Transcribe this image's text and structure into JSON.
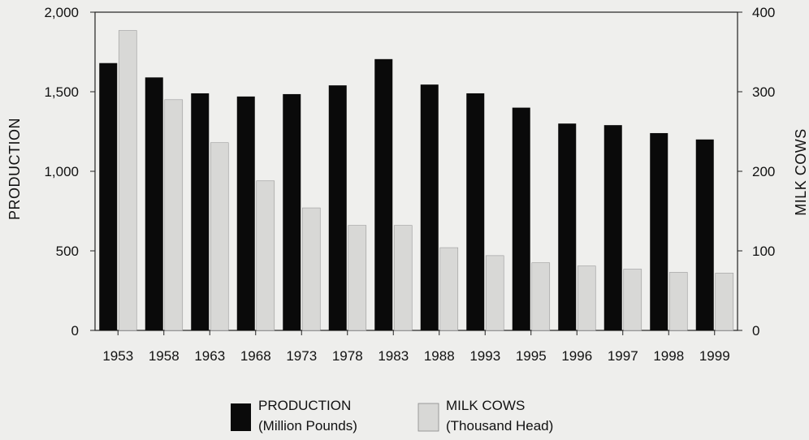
{
  "chart_data": {
    "type": "bar",
    "categories": [
      "1953",
      "1958",
      "1963",
      "1968",
      "1973",
      "1978",
      "1983",
      "1988",
      "1993",
      "1995",
      "1996",
      "1997",
      "1998",
      "1999"
    ],
    "series": [
      {
        "name": "PRODUCTION",
        "unit": "(Million Pounds)",
        "axis": "left",
        "color": "#0a0a0a",
        "values": [
          1680,
          1590,
          1490,
          1470,
          1485,
          1540,
          1705,
          1545,
          1490,
          1400,
          1300,
          1290,
          1240,
          1200
        ]
      },
      {
        "name": "MILK COWS",
        "unit": "(Thousand Head)",
        "axis": "right",
        "color": "#d8d8d6",
        "values": [
          377,
          290,
          236,
          188,
          154,
          132,
          132,
          104,
          94,
          85,
          81,
          77,
          73,
          72
        ]
      }
    ],
    "ylabel_left": "PRODUCTION",
    "ylabel_right": "MILK COWS",
    "ylim_left": [
      0,
      2000
    ],
    "ylim_right": [
      0,
      400
    ],
    "yticks_left": [
      "0",
      "500",
      "1,000",
      "1,500",
      "2,000"
    ],
    "yticks_right": [
      "0",
      "100",
      "200",
      "300",
      "400"
    ],
    "grid": false,
    "legend_position": "bottom-center"
  }
}
